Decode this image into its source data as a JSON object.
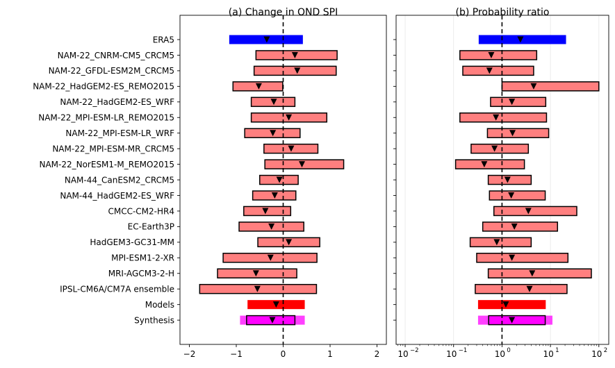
{
  "chart_data": [
    {
      "type": "bar",
      "subtype": "horizontal-interval",
      "title": "(a) Change in OND SPI",
      "xscale": "linear",
      "xlim": [
        -2.2,
        2.2
      ],
      "xticks": [
        -2,
        -1,
        0,
        1,
        2
      ],
      "xtick_labels": [
        "−2",
        "−1",
        "0",
        "1",
        "2"
      ],
      "reference_line": 0,
      "categories": [
        "ERA5",
        "NAM-22_CNRM-CM5_CRCM5",
        "NAM-22_GFDL-ESM2M_CRCM5",
        "NAM-22_HadGEM2-ES_REMO2015",
        "NAM-22_HadGEM2-ES_WRF",
        "NAM-22_MPI-ESM-LR_REMO2015",
        "NAM-22_MPI-ESM-LR_WRF",
        "NAM-22_MPI-ESM-MR_CRCM5",
        "NAM-22_NorESM1-M_REMO2015",
        "NAM-44_CanESM2_CRCM5",
        "NAM-44_HadGEM2-ES_WRF",
        "CMCC-CM2-HR4",
        "EC-Earth3P",
        "HadGEM3-GC31-MM",
        "MPI-ESM1-2-XR",
        "MRI-AGCM3-2-H",
        "IPSL-CM6A/CM7A ensemble",
        "Models",
        "Synthesis"
      ],
      "lower": [
        -1.15,
        -0.58,
        -0.62,
        -1.07,
        -0.68,
        -0.68,
        -0.82,
        -0.41,
        -0.39,
        -0.5,
        -0.65,
        -0.84,
        -0.94,
        -0.54,
        -1.28,
        -1.4,
        -1.78,
        -0.76,
        -0.78
      ],
      "best": [
        -0.35,
        0.25,
        0.3,
        -0.52,
        -0.2,
        0.12,
        -0.22,
        0.17,
        0.4,
        -0.08,
        -0.18,
        -0.38,
        -0.25,
        0.12,
        -0.27,
        -0.58,
        -0.55,
        -0.15,
        -0.23
      ],
      "upper": [
        0.42,
        1.15,
        1.13,
        -0.01,
        0.25,
        0.93,
        0.36,
        0.74,
        1.29,
        0.32,
        0.27,
        0.16,
        0.44,
        0.78,
        0.72,
        0.29,
        0.71,
        0.46,
        0.25
      ],
      "synthesis_outer": [
        -0.92,
        0.46
      ]
    },
    {
      "type": "bar",
      "subtype": "horizontal-interval",
      "title": "(b) Probability ratio",
      "xscale": "log",
      "xlim": [
        0.0065,
        160
      ],
      "xticks": [
        0.01,
        0.1,
        1,
        10,
        100
      ],
      "xtick_labels": [
        {
          "base": "10",
          "exp": "−2"
        },
        {
          "base": "10",
          "exp": "−1"
        },
        {
          "base": "10",
          "exp": "0"
        },
        {
          "base": "10",
          "exp": "1"
        },
        {
          "base": "10",
          "exp": "2"
        }
      ],
      "reference_line": 1,
      "categories": [
        "ERA5",
        "NAM-22_CNRM-CM5_CRCM5",
        "NAM-22_GFDL-ESM2M_CRCM5",
        "NAM-22_HadGEM2-ES_REMO2015",
        "NAM-22_HadGEM2-ES_WRF",
        "NAM-22_MPI-ESM-LR_REMO2015",
        "NAM-22_MPI-ESM-LR_WRF",
        "NAM-22_MPI-ESM-MR_CRCM5",
        "NAM-22_NorESM1-M_REMO2015",
        "NAM-44_CanESM2_CRCM5",
        "NAM-44_HadGEM2-ES_WRF",
        "CMCC-CM2-HR4",
        "EC-Earth3P",
        "HadGEM3-GC31-MM",
        "MPI-ESM1-2-XR",
        "MRI-AGCM3-2-H",
        "IPSL-CM6A/CM7A ensemble",
        "Models",
        "Synthesis"
      ],
      "lower": [
        0.33,
        0.135,
        0.155,
        1.0,
        0.58,
        0.135,
        0.5,
        0.23,
        0.11,
        0.52,
        0.55,
        0.68,
        0.4,
        0.22,
        0.3,
        0.52,
        0.28,
        0.32,
        0.53
      ],
      "best": [
        2.4,
        0.6,
        0.55,
        4.5,
        1.6,
        0.75,
        1.65,
        0.7,
        0.43,
        1.3,
        1.55,
        3.5,
        1.8,
        0.78,
        1.6,
        4.2,
        3.7,
        1.2,
        1.6
      ],
      "upper": [
        21,
        5.2,
        4.5,
        100,
        8.0,
        8.3,
        9.2,
        3.5,
        2.9,
        4.0,
        7.8,
        35,
        14,
        4.0,
        23,
        70,
        22,
        8.0,
        7.8
      ],
      "synthesis_outer": [
        0.32,
        11
      ]
    }
  ],
  "colors": {
    "observation": "#0000ff",
    "model": "#ff7f7f",
    "models_aggregate": "#ff0000",
    "synthesis": "#ff00ff",
    "outline": "#000000",
    "reference_line": "#000000",
    "grid": "#e6e6e6"
  },
  "row_styles": [
    "obs",
    "model",
    "model",
    "model",
    "model",
    "model",
    "model",
    "model",
    "model",
    "model",
    "model",
    "model",
    "model",
    "model",
    "model",
    "model",
    "model",
    "models",
    "synthesis"
  ]
}
